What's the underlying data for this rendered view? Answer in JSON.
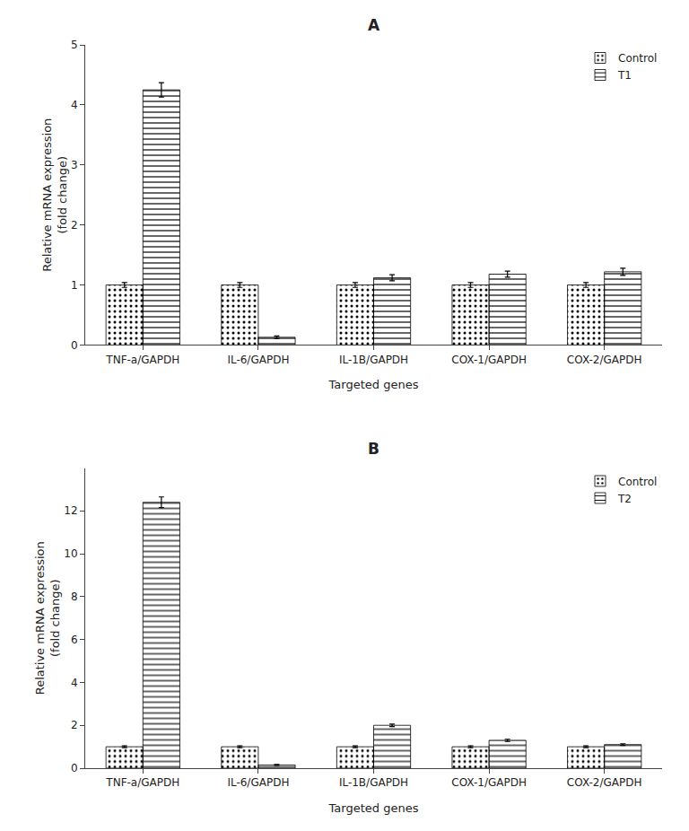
{
  "chart_data": [
    {
      "type": "bar",
      "title": "A",
      "xlabel": "Targeted genes",
      "ylabel": "Relative mRNA expression\n(fold change)",
      "categories": [
        "TNF-a/GAPDH",
        "IL-6/GAPDH",
        "IL-1B/GAPDH",
        "COX-1/GAPDH",
        "COX-2/GAPDH"
      ],
      "series": [
        {
          "name": "Control",
          "color": "#1aa832",
          "values": [
            1.0,
            1.0,
            1.0,
            1.0,
            1.0
          ],
          "errors": [
            0.04,
            0.04,
            0.04,
            0.04,
            0.04
          ]
        },
        {
          "name": "T1",
          "color": "#3d8fce",
          "values": [
            4.25,
            0.13,
            1.12,
            1.18,
            1.22
          ],
          "errors": [
            0.12,
            0.02,
            0.05,
            0.05,
            0.06
          ]
        }
      ],
      "ylim": [
        0,
        5
      ],
      "yticks": [
        0,
        1,
        2,
        3,
        4,
        5
      ],
      "grid": false,
      "legend": "upper right"
    },
    {
      "type": "bar",
      "title": "B",
      "xlabel": "Targeted genes",
      "ylabel": "Relative mRNA expression\n(fold change)",
      "categories": [
        "TNF-a/GAPDH",
        "IL-6/GAPDH",
        "IL-1B/GAPDH",
        "COX-1/GAPDH",
        "COX-2/GAPDH"
      ],
      "series": [
        {
          "name": "Control",
          "color": "#1aa832",
          "values": [
            1.0,
            1.0,
            1.0,
            1.0,
            1.0
          ],
          "errors": [
            0.04,
            0.04,
            0.04,
            0.04,
            0.04
          ]
        },
        {
          "name": "T2",
          "color": "#3d8fce",
          "values": [
            12.4,
            0.15,
            2.0,
            1.3,
            1.1
          ],
          "errors": [
            0.25,
            0.02,
            0.06,
            0.05,
            0.04
          ]
        }
      ],
      "ylim": [
        0,
        14
      ],
      "yticks": [
        0,
        2,
        4,
        6,
        8,
        10,
        12
      ],
      "grid": false,
      "legend": "upper right"
    }
  ]
}
